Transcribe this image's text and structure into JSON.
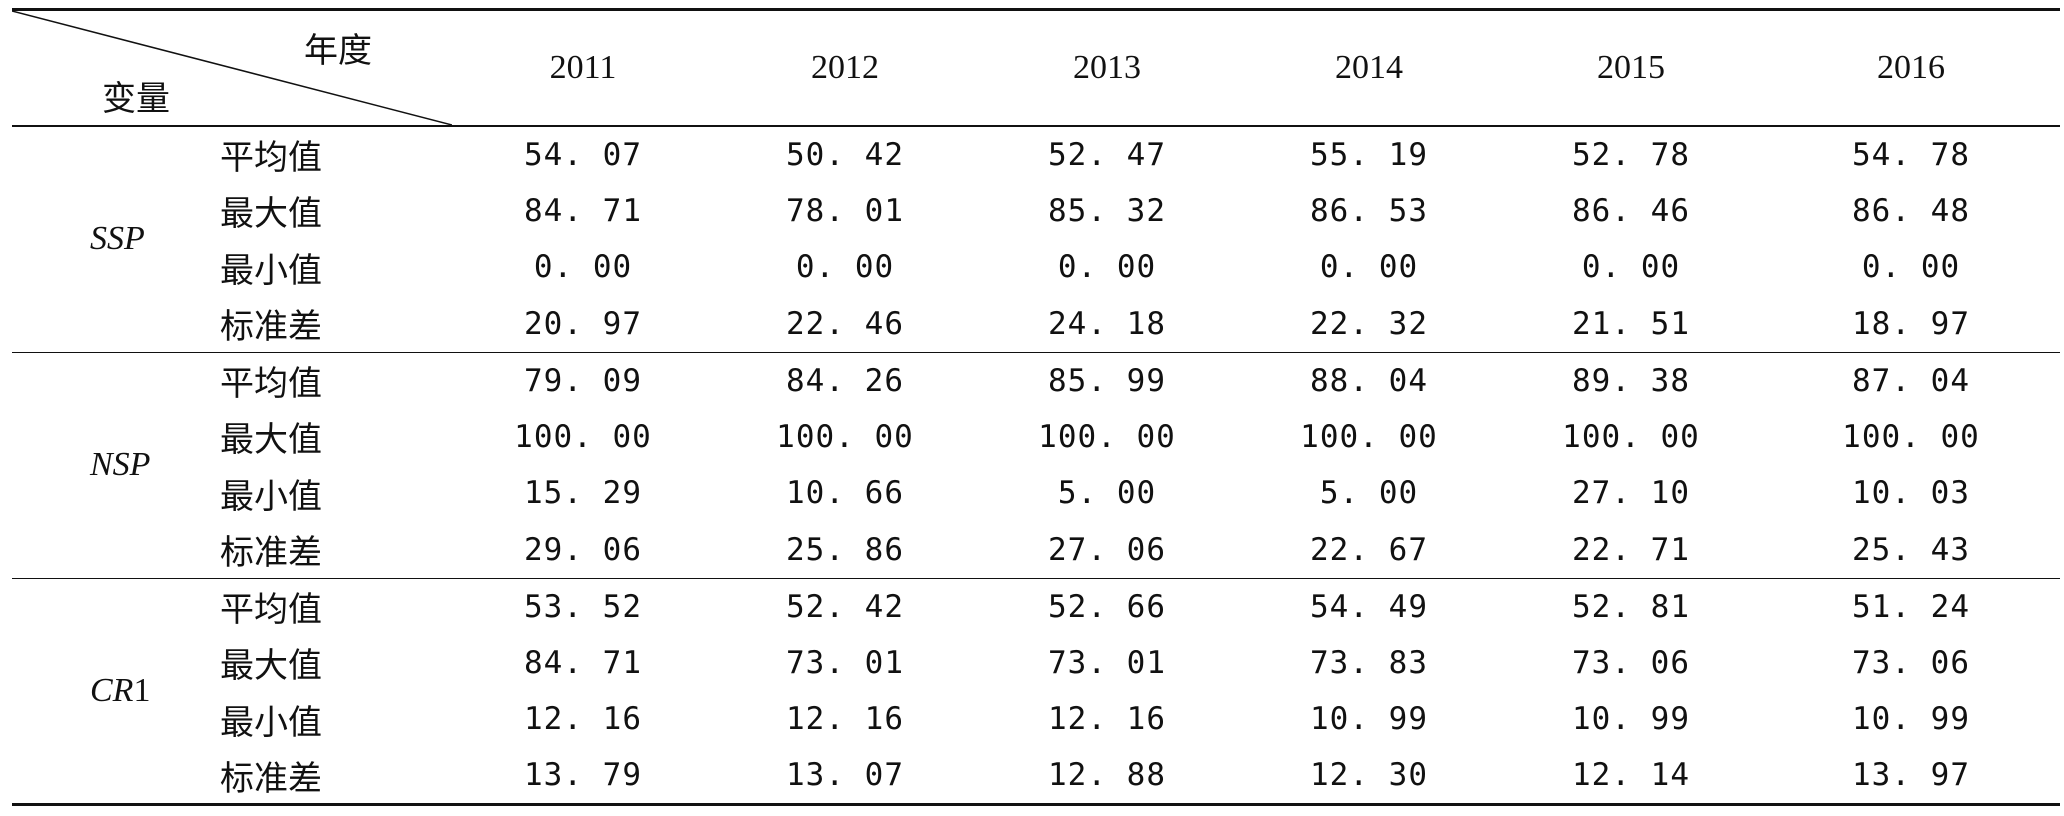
{
  "table": {
    "corner": {
      "top_label": "年度",
      "bottom_label": "变量"
    },
    "years": [
      "2011",
      "2012",
      "2013",
      "2014",
      "2015",
      "2016"
    ],
    "groups": [
      {
        "var_name": "SSP",
        "var_suffix": "",
        "rows": [
          {
            "stat": "平均值",
            "values": [
              "54. 07",
              "50. 42",
              "52. 47",
              "55. 19",
              "52. 78",
              "54. 78"
            ]
          },
          {
            "stat": "最大值",
            "values": [
              "84. 71",
              "78. 01",
              "85. 32",
              "86. 53",
              "86. 46",
              "86. 48"
            ]
          },
          {
            "stat": "最小值",
            "values": [
              "0. 00",
              "0. 00",
              "0. 00",
              "0. 00",
              "0. 00",
              "0. 00"
            ]
          },
          {
            "stat": "标准差",
            "values": [
              "20. 97",
              "22. 46",
              "24. 18",
              "22. 32",
              "21. 51",
              "18. 97"
            ]
          }
        ]
      },
      {
        "var_name": "NSP",
        "var_suffix": "",
        "rows": [
          {
            "stat": "平均值",
            "values": [
              "79. 09",
              "84. 26",
              "85. 99",
              "88. 04",
              "89. 38",
              "87. 04"
            ]
          },
          {
            "stat": "最大值",
            "values": [
              "100. 00",
              "100. 00",
              "100. 00",
              "100. 00",
              "100. 00",
              "100. 00"
            ]
          },
          {
            "stat": "最小值",
            "values": [
              "15. 29",
              "10. 66",
              "5. 00",
              "5. 00",
              "27. 10",
              "10. 03"
            ]
          },
          {
            "stat": "标准差",
            "values": [
              "29. 06",
              "25. 86",
              "27. 06",
              "22. 67",
              "22. 71",
              "25. 43"
            ]
          }
        ]
      },
      {
        "var_name": "CR",
        "var_suffix": "1",
        "rows": [
          {
            "stat": "平均值",
            "values": [
              "53. 52",
              "52. 42",
              "52. 66",
              "54. 49",
              "52. 81",
              "51. 24"
            ]
          },
          {
            "stat": "最大值",
            "values": [
              "84. 71",
              "73. 01",
              "73. 01",
              "73. 83",
              "73. 06",
              "73. 06"
            ]
          },
          {
            "stat": "最小值",
            "values": [
              "12. 16",
              "12. 16",
              "12. 16",
              "10. 99",
              "10. 99",
              "10. 99"
            ]
          },
          {
            "stat": "标准差",
            "values": [
              "13. 79",
              "13. 07",
              "12. 88",
              "12. 30",
              "12. 14",
              "13. 97"
            ]
          }
        ]
      }
    ]
  }
}
